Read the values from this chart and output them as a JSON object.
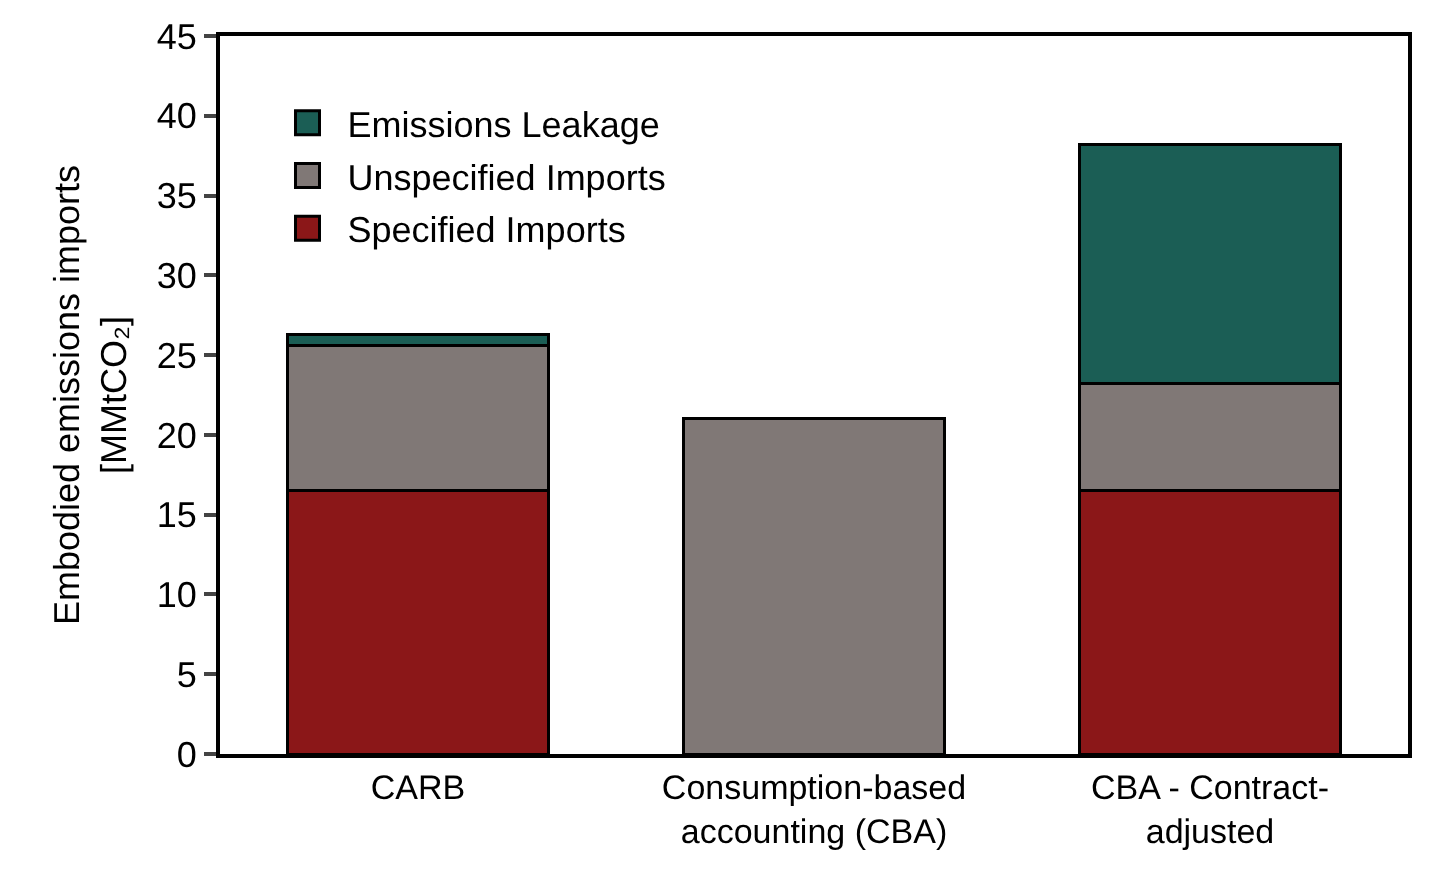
{
  "chart_data": {
    "type": "bar",
    "stacked": true,
    "ylabel": "Embodied emissions imports\n[MMtCO₂]",
    "categories": [
      "CARB",
      "Consumption-based\naccounting (CBA)",
      "CBA - Contract-\nadjusted"
    ],
    "series": [
      {
        "name": "Specified Imports",
        "color": "#8b1718",
        "values": [
          16.5,
          null,
          16.5
        ]
      },
      {
        "name": "Unspecified Imports",
        "color": "#807876",
        "values": [
          9.1,
          21.0,
          6.7
        ]
      },
      {
        "name": "Emissions Leakage",
        "color": "#1b5e55",
        "values": [
          0.7,
          null,
          15.0
        ]
      }
    ],
    "ylim": [
      0,
      45
    ],
    "yticks": [
      0,
      5,
      10,
      15,
      20,
      25,
      30,
      35,
      40,
      45
    ],
    "grid": false,
    "legend": "top left"
  }
}
